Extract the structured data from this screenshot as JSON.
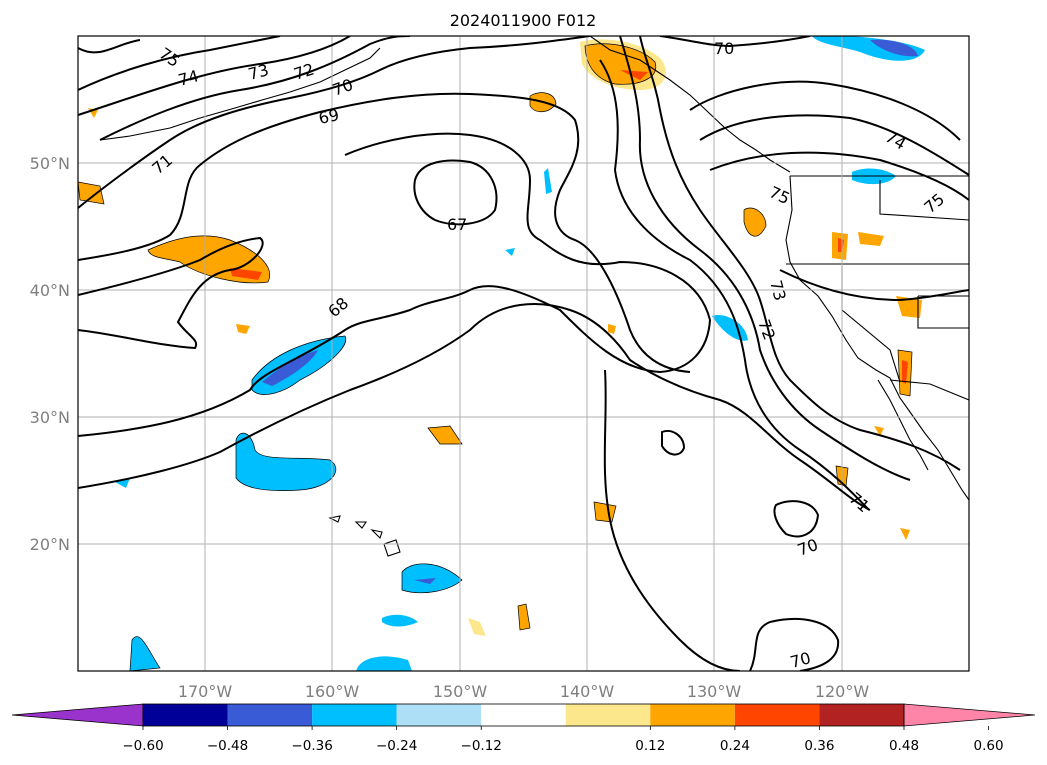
{
  "title": "2024011900 F012",
  "lon_labels": [
    "170°W",
    "160°W",
    "150°W",
    "140°W",
    "130°W",
    "120°W"
  ],
  "lat_labels": [
    "50°N",
    "40°N",
    "30°N",
    "20°N"
  ],
  "map_extent": {
    "lon": [
      -180,
      -110
    ],
    "lat": [
      10,
      60
    ]
  },
  "contour_labels": [
    "75",
    "74",
    "73",
    "72",
    "70",
    "69",
    "71",
    "67",
    "68",
    "70",
    "73",
    "72",
    "71",
    "70",
    "70",
    "75",
    "74",
    "75"
  ],
  "colorbar": {
    "ticks": [
      "−0.60",
      "−0.48",
      "−0.36",
      "−0.24",
      "−0.12",
      "0.12",
      "0.24",
      "0.36",
      "0.48",
      "0.60"
    ],
    "colors": [
      "#9933cc",
      "#000099",
      "#3a5bd6",
      "#00bfff",
      "#ade0f7",
      "#ffffff",
      "#fde78c",
      "#ffa500",
      "#ff4500",
      "#b22222",
      "#ff85a8"
    ]
  },
  "colors": {
    "neg_strong": "#3a5bd6",
    "neg_mid": "#00bfff",
    "neg_weak": "#ade0f7",
    "pos_weak": "#fde78c",
    "pos_mid": "#ffa500",
    "pos_strong": "#ff4500"
  }
}
